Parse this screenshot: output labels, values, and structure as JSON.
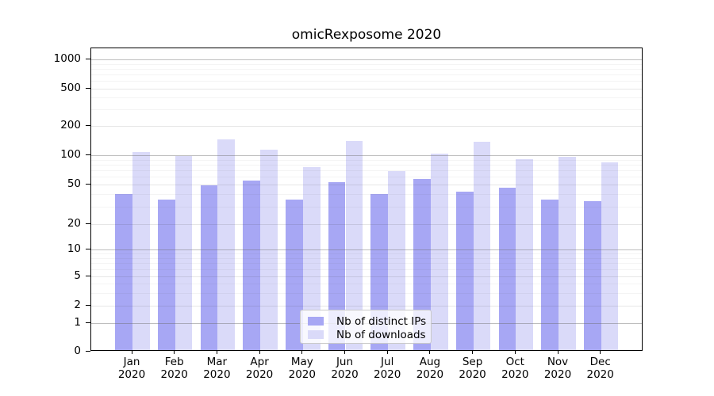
{
  "title": "omicRexposome 2020",
  "chart_data": {
    "type": "bar",
    "title": "omicRexposome 2020",
    "categories": [
      "Jan",
      "Feb",
      "Mar",
      "Apr",
      "May",
      "Jun",
      "Jul",
      "Aug",
      "Sep",
      "Oct",
      "Nov",
      "Dec"
    ],
    "year_label": "2020",
    "series": [
      {
        "name": "Nb of distinct IPs",
        "color": "#a7a7f4",
        "values": [
          39,
          34,
          47,
          53,
          34,
          51,
          39,
          55,
          41,
          45,
          34,
          33
        ]
      },
      {
        "name": "Nb of downloads",
        "color": "#dadaf9",
        "values": [
          104,
          95,
          141,
          110,
          73,
          135,
          66,
          100,
          132,
          87,
          92,
          82
        ]
      }
    ],
    "y_ticks": [
      0,
      1,
      2,
      5,
      10,
      20,
      50,
      100,
      200,
      500,
      1000
    ],
    "y_scale": "log-like",
    "ylim": [
      0,
      1000
    ],
    "xlabel": "",
    "ylabel": "",
    "grid": true,
    "legend_position": "lower center",
    "legend_labels": [
      "Nb of distinct IPs",
      "Nb of downloads"
    ]
  }
}
